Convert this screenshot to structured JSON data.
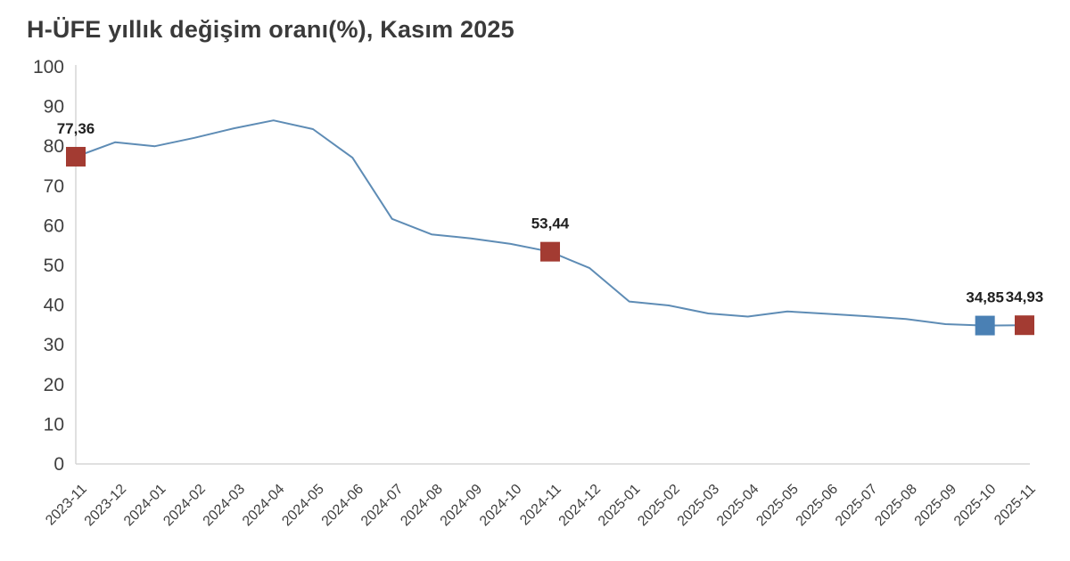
{
  "chart_data": {
    "type": "line",
    "title": "H-ÜFE yıllık değişim oranı(%), Kasım 2025",
    "xlabel": "",
    "ylabel": "",
    "ylim": [
      0,
      100
    ],
    "yticks": [
      0,
      10,
      20,
      30,
      40,
      50,
      60,
      70,
      80,
      90,
      100
    ],
    "grid": false,
    "legend_position": "none",
    "line_color": "#5e8cb5",
    "axis_color": "#d6d6d6",
    "tick_label_color": "#3f3f3f",
    "value_label_color": "#1f1f1f",
    "categories": [
      "2023-11",
      "2023-12",
      "2024-01",
      "2024-02",
      "2024-03",
      "2024-04",
      "2024-05",
      "2024-06",
      "2024-07",
      "2024-08",
      "2024-09",
      "2024-10",
      "2024-11",
      "2024-12",
      "2025-01",
      "2025-02",
      "2025-03",
      "2025-04",
      "2025-05",
      "2025-06",
      "2025-07",
      "2025-08",
      "2025-09",
      "2025-10",
      "2025-11"
    ],
    "values": [
      77.36,
      81.0,
      80.0,
      82.1,
      84.5,
      86.5,
      84.3,
      77.1,
      61.7,
      57.8,
      56.8,
      55.4,
      53.44,
      49.3,
      40.9,
      39.9,
      37.9,
      37.1,
      38.4,
      37.8,
      37.2,
      36.5,
      35.2,
      34.85,
      34.93
    ],
    "annotated_points": [
      {
        "category": "2023-11",
        "value": 77.36,
        "label": "77,36",
        "marker_color": "#a33b32"
      },
      {
        "category": "2024-11",
        "value": 53.44,
        "label": "53,44",
        "marker_color": "#a33b32"
      },
      {
        "category": "2025-10",
        "value": 34.85,
        "label": "34,85",
        "marker_color": "#4a80b4"
      },
      {
        "category": "2025-11",
        "value": 34.93,
        "label": "34,93",
        "marker_color": "#a33b32"
      }
    ]
  }
}
